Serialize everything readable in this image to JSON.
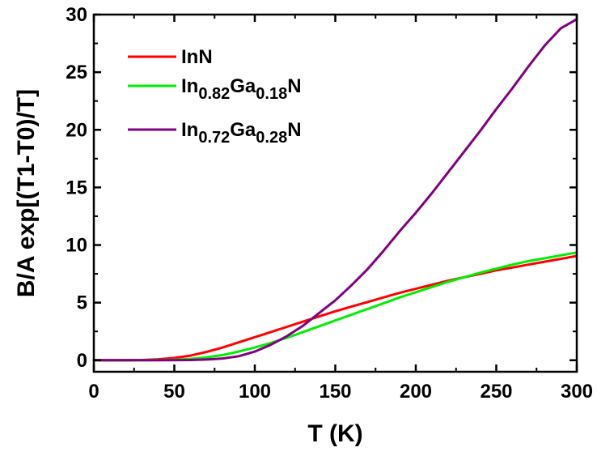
{
  "chart_data": {
    "type": "line",
    "title": "",
    "xlabel": "T (K)",
    "ylabel": "B/A exp[(T1-T0)/T]",
    "xlim": [
      0,
      300
    ],
    "ylim": [
      -1,
      30
    ],
    "x_ticks": [
      0,
      50,
      100,
      150,
      200,
      250,
      300
    ],
    "y_ticks": [
      0,
      5,
      10,
      15,
      20,
      25,
      30
    ],
    "grid": false,
    "legend_position": "top-left",
    "series": [
      {
        "name": "InN",
        "name_parts": [
          {
            "text": "InN",
            "sub": false
          }
        ],
        "color": "#ff0000",
        "x": [
          0,
          20,
          30,
          40,
          50,
          60,
          70,
          80,
          90,
          100,
          110,
          120,
          130,
          140,
          150,
          160,
          170,
          180,
          190,
          200,
          210,
          220,
          230,
          240,
          250,
          260,
          270,
          280,
          290,
          300
        ],
        "y": [
          0,
          0,
          0.02,
          0.08,
          0.2,
          0.4,
          0.72,
          1.1,
          1.55,
          2.0,
          2.45,
          2.9,
          3.35,
          3.8,
          4.25,
          4.65,
          5.05,
          5.45,
          5.85,
          6.2,
          6.55,
          6.9,
          7.2,
          7.5,
          7.8,
          8.05,
          8.3,
          8.55,
          8.8,
          9.05
        ]
      },
      {
        "name": "In0.82Ga0.18N",
        "name_parts": [
          {
            "text": "In",
            "sub": false
          },
          {
            "text": "0.82",
            "sub": true
          },
          {
            "text": "Ga",
            "sub": false
          },
          {
            "text": "0.18",
            "sub": true
          },
          {
            "text": "N",
            "sub": false
          }
        ],
        "color": "#00ee00",
        "x": [
          0,
          20,
          40,
          50,
          60,
          70,
          80,
          90,
          100,
          110,
          120,
          130,
          140,
          150,
          160,
          170,
          180,
          190,
          200,
          210,
          220,
          230,
          240,
          250,
          260,
          270,
          280,
          290,
          300
        ],
        "y": [
          0,
          0,
          0.02,
          0.05,
          0.12,
          0.25,
          0.45,
          0.75,
          1.1,
          1.5,
          1.95,
          2.45,
          2.95,
          3.45,
          3.95,
          4.45,
          4.95,
          5.45,
          5.9,
          6.35,
          6.8,
          7.2,
          7.6,
          7.95,
          8.3,
          8.6,
          8.85,
          9.1,
          9.35
        ]
      },
      {
        "name": "In0.72Ga0.28N",
        "name_parts": [
          {
            "text": "In",
            "sub": false
          },
          {
            "text": "0.72",
            "sub": true
          },
          {
            "text": "Ga",
            "sub": false
          },
          {
            "text": "0.28",
            "sub": true
          },
          {
            "text": "N",
            "sub": false
          }
        ],
        "color": "#800080",
        "x": [
          0,
          20,
          40,
          60,
          70,
          80,
          90,
          100,
          110,
          120,
          130,
          140,
          150,
          160,
          170,
          180,
          190,
          200,
          210,
          220,
          230,
          240,
          250,
          260,
          270,
          280,
          290,
          300
        ],
        "y": [
          0,
          0,
          0,
          0.02,
          0.06,
          0.15,
          0.35,
          0.75,
          1.35,
          2.1,
          3.0,
          4.1,
          5.2,
          6.5,
          7.9,
          9.5,
          11.2,
          12.8,
          14.5,
          16.3,
          18.1,
          19.9,
          21.8,
          23.6,
          25.5,
          27.3,
          28.8,
          29.6
        ]
      }
    ]
  }
}
